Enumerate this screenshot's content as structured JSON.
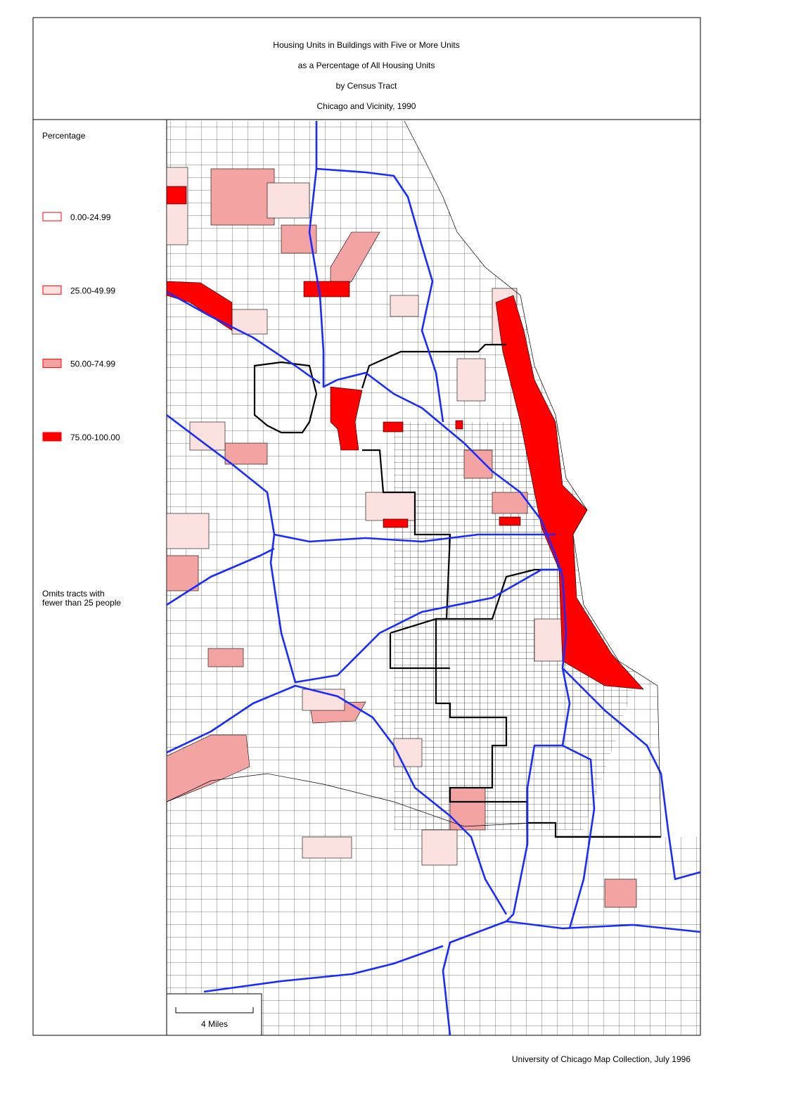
{
  "header": {
    "lines": [
      "Housing Units in Buildings with Five or More Units",
      "as a Percentage of All Housing Units",
      "by Census Tract",
      "Chicago and Vicinity, 1990"
    ]
  },
  "legend": {
    "title": "Percentage",
    "items": [
      {
        "label": "0.00-24.99",
        "color": "#ffffff"
      },
      {
        "label": "25.00-49.99",
        "color": "#fce1e1"
      },
      {
        "label": "50.00-74.99",
        "color": "#f4a3a3"
      },
      {
        "label": "75.00-100.00",
        "color": "#ff0000"
      }
    ],
    "note": [
      "Omits tracts with",
      "fewer than 25 people"
    ]
  },
  "scale": {
    "label": "4 Miles"
  },
  "footer": "University of Chicago Map Collection, July 1996"
}
